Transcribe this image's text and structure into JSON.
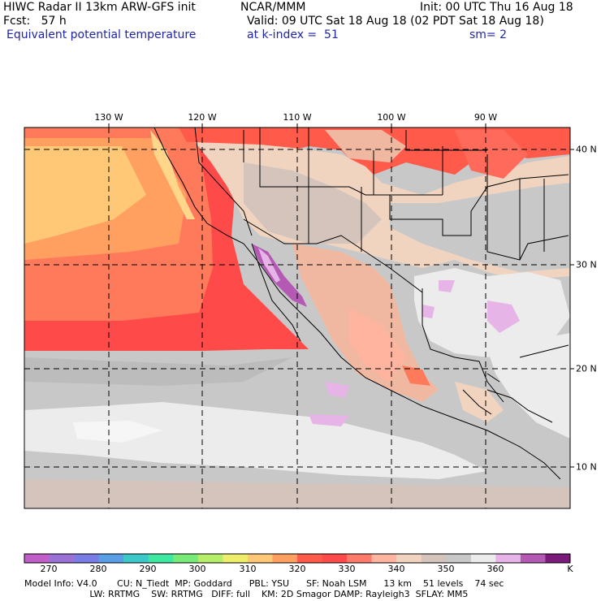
{
  "header": {
    "title": "HIWC Radar II 13km ARW-GFS init",
    "institution": "NCAR/MMM",
    "init": "Init: 00 UTC Thu 16 Aug 18",
    "fcst": "Fcst:   57 h",
    "valid": "Valid: 09 UTC Sat 18 Aug 18 (02 PDT Sat 18 Aug 18)",
    "field": "Equivalent potential temperature",
    "level": "at k-index =  51",
    "smoothing": "sm= 2"
  },
  "map": {
    "longitude_labels": [
      "130 W",
      "120 W",
      "110 W",
      "100 W",
      "90 W"
    ],
    "latitude_labels": [
      "40 N",
      "30 N",
      "20 N",
      "10 N"
    ]
  },
  "colorbar": {
    "unit": "K",
    "tick_labels": [
      "270",
      "280",
      "290",
      "300",
      "310",
      "320",
      "330",
      "340",
      "350",
      "360"
    ],
    "colors": [
      "#c25ec9",
      "#9a72d6",
      "#7b7de6",
      "#5a9ee6",
      "#3ec9c9",
      "#3ee8a0",
      "#78ea78",
      "#b6ee6a",
      "#eeee6a",
      "#ffc877",
      "#ffa060",
      "#ff5a4a",
      "#ff4a4a",
      "#ff7a6a",
      "#ffb4a0",
      "#f0d4c0",
      "#d4c4bc",
      "#c8c8c8",
      "#ececec",
      "#e6b4e6",
      "#b45ab4",
      "#7a1a7a"
    ]
  },
  "footer": {
    "line1": "Model Info: V4.0       CU: N_Tiedt  MP: Goddard      PBL: YSU      SF: Noah LSM      13 km    51 levels    74 sec",
    "line2": "                       LW: RRTMG    SW: RRTMG   DIFF: full    KM: 2D Smagor DAMP: Rayleigh3  SFLAY: MM5"
  }
}
